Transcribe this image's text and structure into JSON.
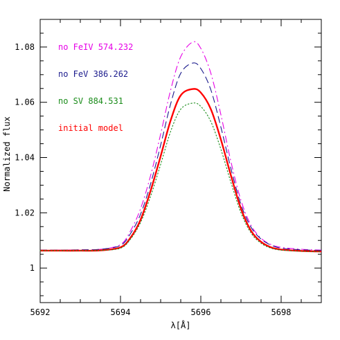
{
  "chart_data": {
    "type": "line",
    "title": "",
    "xlabel": "λ[Å]",
    "ylabel": "Normalized flux",
    "xlim": [
      5692,
      5699
    ],
    "ylim": [
      0.9875,
      1.09
    ],
    "x_ticks": [
      5692,
      5694,
      5696,
      5698
    ],
    "y_ticks": [
      1,
      1.02,
      1.04,
      1.06,
      1.08
    ],
    "x_tick_labels": [
      "5692",
      "5694",
      "5696",
      "5698"
    ],
    "y_tick_labels": [
      "1",
      "1.02",
      "1.04",
      "1.06",
      "1.08"
    ],
    "grid": false,
    "legend_position": "top-left",
    "series": [
      {
        "name": "no FeIV 574.232",
        "color": "#e600e6",
        "dash": "dashdot",
        "x": [
          5692,
          5692.5,
          5693,
          5693.5,
          5694,
          5694.25,
          5694.5,
          5694.75,
          5695,
          5695.25,
          5695.5,
          5695.8,
          5696,
          5696.25,
          5696.5,
          5696.75,
          5697,
          5697.25,
          5697.5,
          5697.75,
          5698,
          5698.5,
          5699
        ],
        "y": [
          1.0065,
          1.0065,
          1.0066,
          1.0068,
          1.0085,
          1.0135,
          1.0215,
          1.0335,
          1.0485,
          1.0645,
          1.0765,
          1.0818,
          1.0795,
          1.0705,
          1.0555,
          1.0385,
          1.0245,
          1.0155,
          1.0108,
          1.0085,
          1.0075,
          1.0068,
          1.0065
        ]
      },
      {
        "name": "no FeV 386.262",
        "color": "#1a1a8c",
        "dash": "dashed",
        "x": [
          5692,
          5692.5,
          5693,
          5693.5,
          5694,
          5694.25,
          5694.5,
          5694.75,
          5695,
          5695.25,
          5695.5,
          5695.8,
          5696,
          5696.25,
          5696.5,
          5696.75,
          5697,
          5697.25,
          5697.5,
          5697.75,
          5698,
          5698.5,
          5699
        ],
        "y": [
          1.0065,
          1.0065,
          1.0066,
          1.0068,
          1.0082,
          1.0125,
          1.0195,
          1.0305,
          1.0445,
          1.0595,
          1.0705,
          1.0742,
          1.0722,
          1.0645,
          1.051,
          1.036,
          1.023,
          1.0148,
          1.0105,
          1.0083,
          1.0072,
          1.0066,
          1.0064
        ]
      },
      {
        "name": "initial model",
        "color": "#ff0000",
        "dash": "solid",
        "x": [
          5692,
          5692.5,
          5693,
          5693.5,
          5694,
          5694.25,
          5694.5,
          5694.75,
          5695,
          5695.25,
          5695.5,
          5695.8,
          5696,
          5696.25,
          5696.5,
          5696.75,
          5697,
          5697.25,
          5697.5,
          5697.75,
          5698,
          5698.5,
          5699
        ],
        "y": [
          1.0063,
          1.0063,
          1.0063,
          1.0064,
          1.0075,
          1.011,
          1.0175,
          1.028,
          1.0405,
          1.0535,
          1.0625,
          1.0648,
          1.0635,
          1.0575,
          1.0465,
          1.0335,
          1.0215,
          1.0135,
          1.0095,
          1.0075,
          1.0067,
          1.0062,
          1.006
        ]
      },
      {
        "name": "no SV 884.531",
        "color": "#1a8c1a",
        "dash": "dotted",
        "x": [
          5692,
          5692.5,
          5693,
          5693.5,
          5694,
          5694.25,
          5694.5,
          5694.75,
          5695,
          5695.25,
          5695.5,
          5695.8,
          5696,
          5696.25,
          5696.5,
          5696.75,
          5697,
          5697.25,
          5697.5,
          5697.75,
          5698,
          5698.5,
          5699
        ],
        "y": [
          1.0063,
          1.0063,
          1.0063,
          1.0064,
          1.0072,
          1.0105,
          1.0165,
          1.026,
          1.0375,
          1.0495,
          1.0575,
          1.0597,
          1.0585,
          1.053,
          1.043,
          1.031,
          1.02,
          1.0127,
          1.009,
          1.0072,
          1.0065,
          1.0061,
          1.0059
        ]
      }
    ],
    "legend": [
      {
        "label": "no FeIV 574.232",
        "color": "#e600e6"
      },
      {
        "label": "no FeV 386.262",
        "color": "#1a1a8c"
      },
      {
        "label": "no SV 884.531",
        "color": "#1a8c1a"
      },
      {
        "label": "initial model",
        "color": "#ff0000"
      }
    ]
  }
}
